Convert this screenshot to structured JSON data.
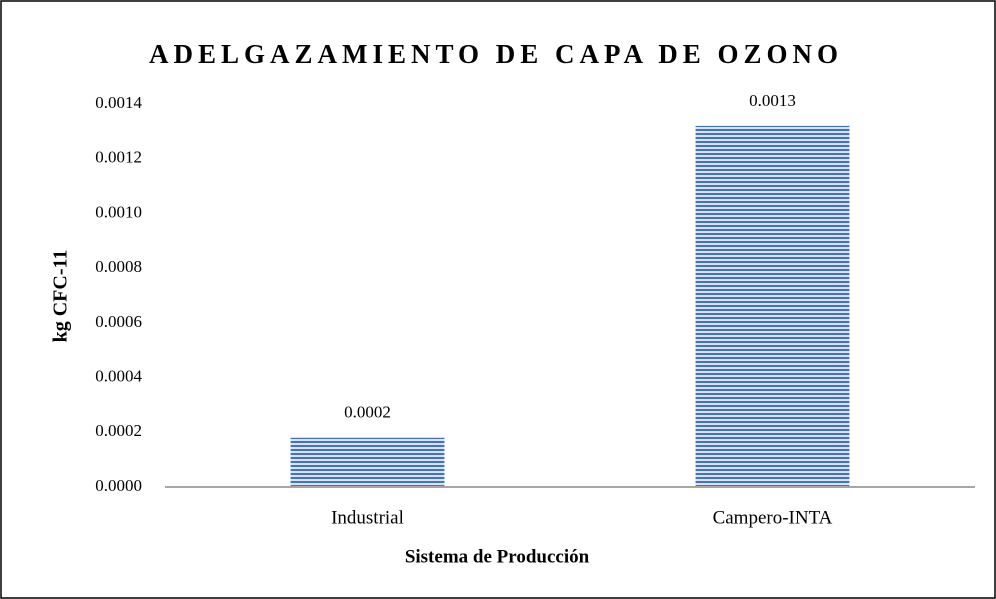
{
  "chart_data": {
    "type": "bar",
    "title": "ADELGAZAMIENTO DE CAPA DE OZONO",
    "x_label": "Sistema de Producción",
    "y_label": "kg CFC-11",
    "categories": [
      "Industrial",
      "Campero-INTA"
    ],
    "values": [
      0.00018,
      0.00132
    ],
    "value_labels": [
      "0.0002",
      "0.0013"
    ],
    "color": "#4472c4",
    "ylim": [
      0,
      0.0014
    ],
    "yticks": [
      {
        "value": 0,
        "label": "0.0000"
      },
      {
        "value": 0.0002,
        "label": "0.0002"
      },
      {
        "value": 0.0004,
        "label": "0.0004"
      },
      {
        "value": 0.0006,
        "label": "0.0006"
      },
      {
        "value": 0.0008,
        "label": "0.0008"
      },
      {
        "value": 0.001,
        "label": "0.0010"
      },
      {
        "value": 0.0012,
        "label": "0.0012"
      },
      {
        "value": 0.0014,
        "label": "0.0014"
      }
    ],
    "grid": false
  }
}
